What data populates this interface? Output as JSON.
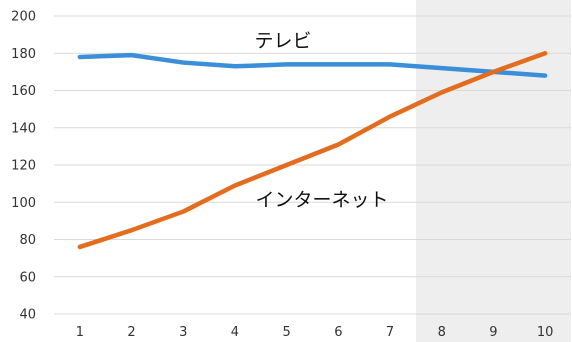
{
  "chart_data": {
    "type": "line",
    "x": [
      1,
      2,
      3,
      4,
      5,
      6,
      7,
      8,
      9,
      10
    ],
    "ylim": [
      40,
      200
    ],
    "yticks": [
      40,
      60,
      80,
      100,
      120,
      140,
      160,
      180,
      200
    ],
    "grid": true,
    "highlight_x_range": [
      7.5,
      10.5
    ],
    "series": [
      {
        "name": "テレビ",
        "color": "#3a8fd8",
        "values": [
          178,
          179,
          175,
          173,
          174,
          174,
          174,
          172,
          170,
          168
        ]
      },
      {
        "name": "インターネット",
        "color": "#e46c1e",
        "values": [
          76,
          85,
          95,
          109,
          120,
          131,
          146,
          159,
          170,
          180
        ]
      }
    ]
  }
}
